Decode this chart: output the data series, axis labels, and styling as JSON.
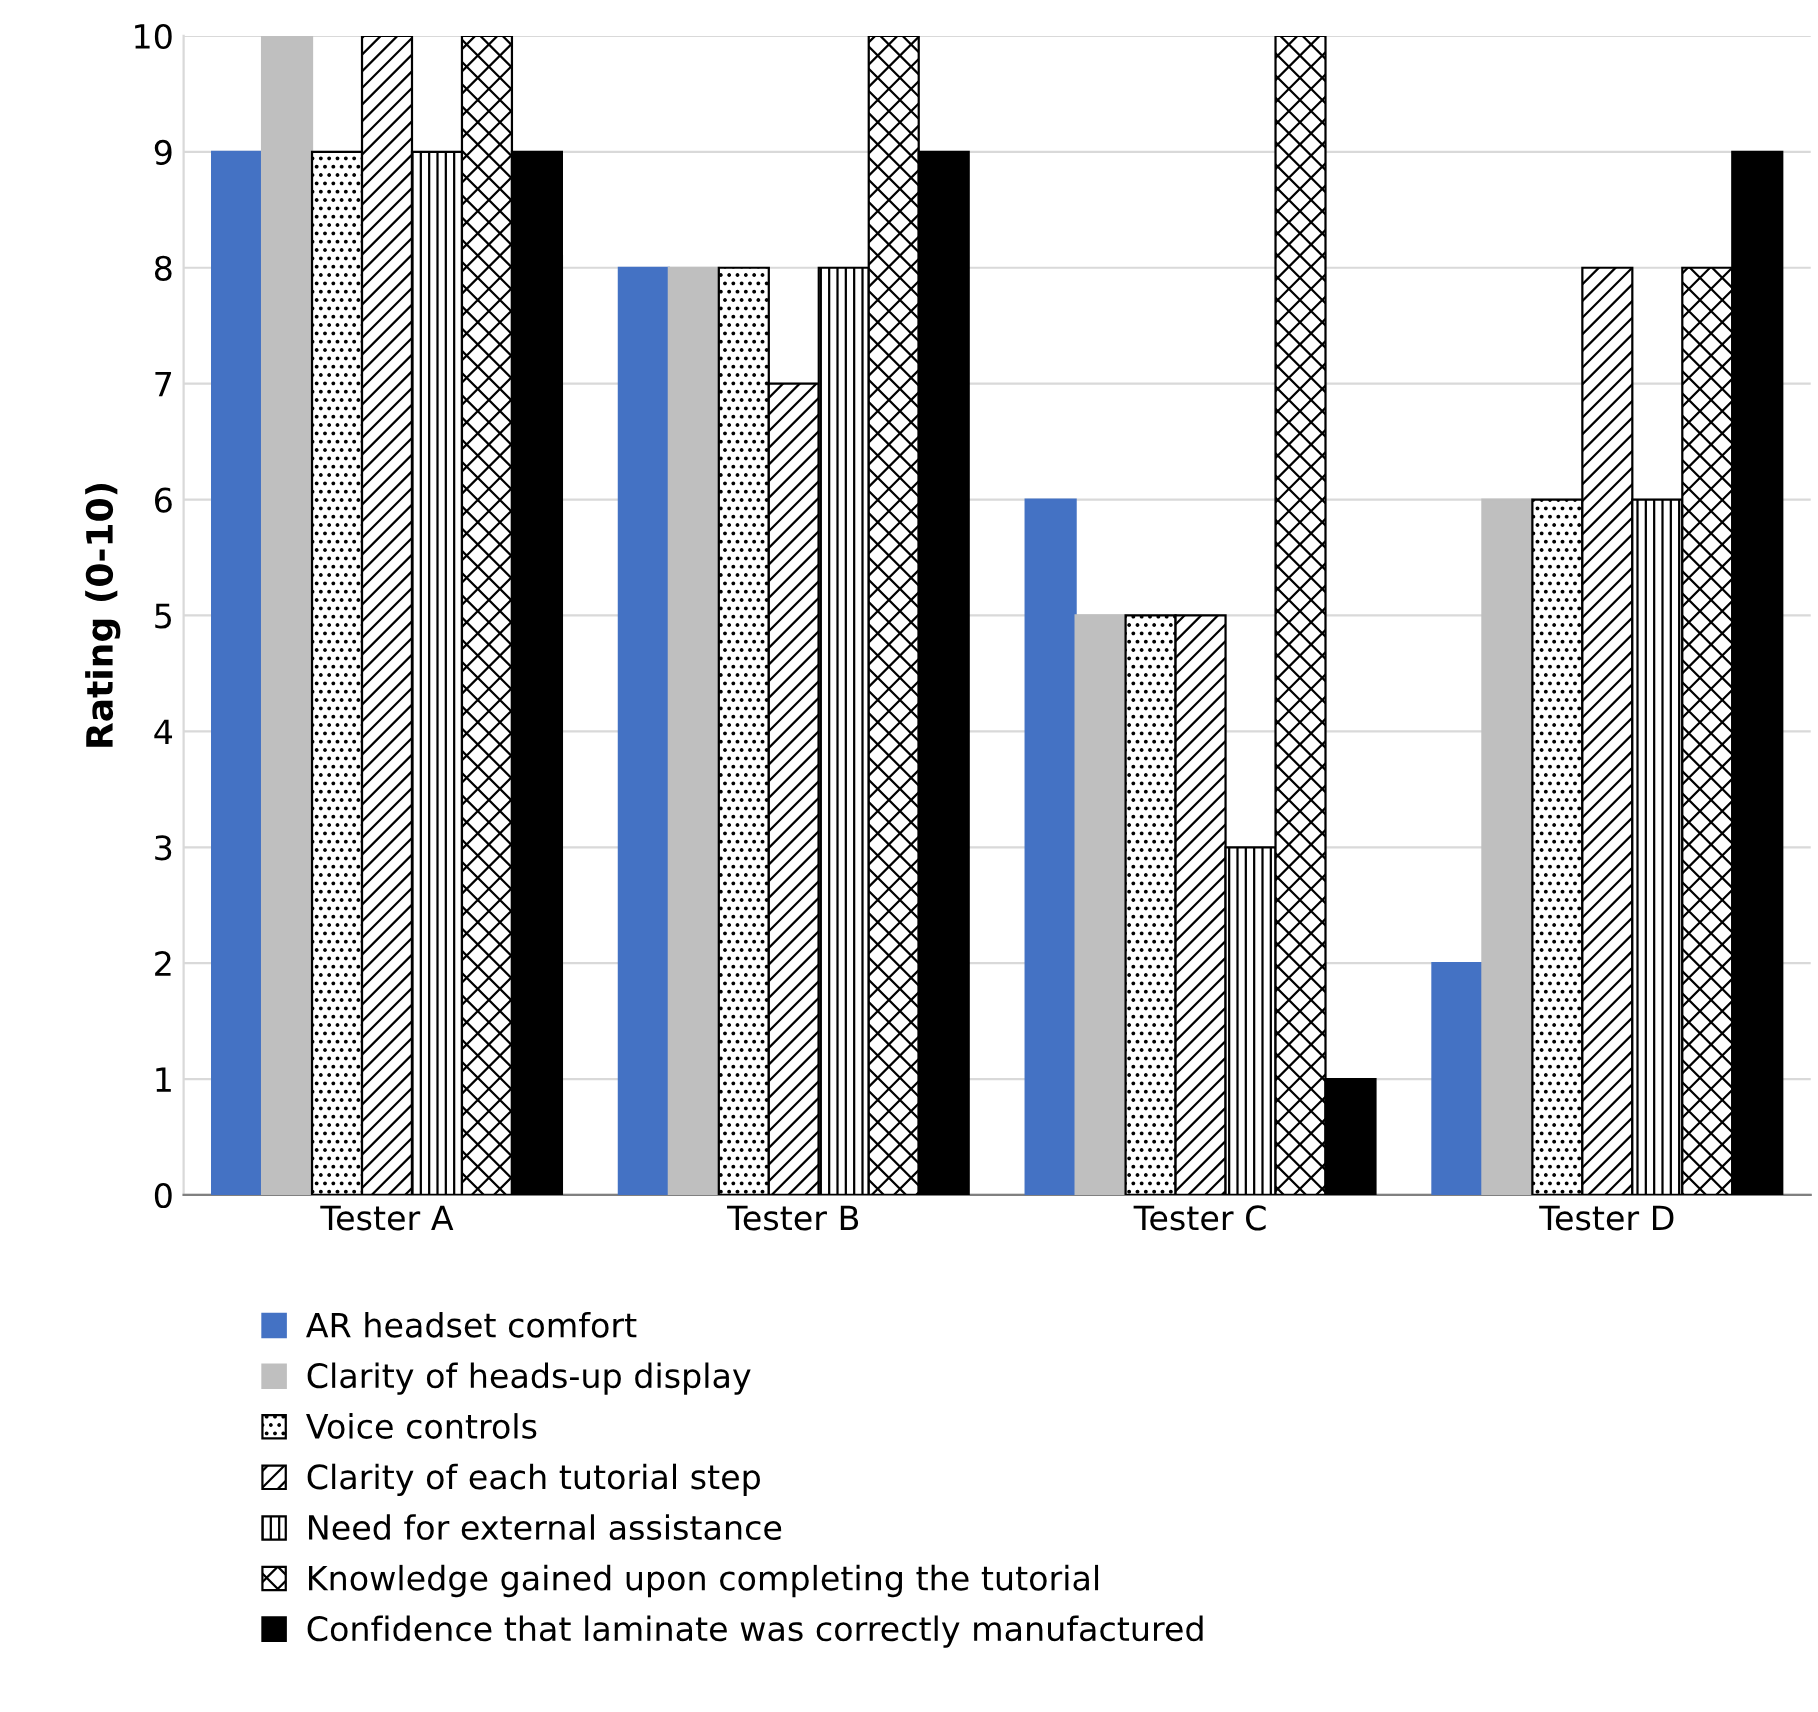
{
  "chart_data": {
    "type": "bar",
    "ylabel": "Rating (0-10)",
    "categories": [
      "Tester A",
      "Tester B",
      "Tester C",
      "Tester D"
    ],
    "series": [
      {
        "name": "AR headset comfort",
        "color": "#4472c4",
        "values": [
          9,
          8,
          6,
          2
        ]
      },
      {
        "name": "Clarity of heads-up display",
        "color": "#bfbfbf",
        "values": [
          10,
          8,
          5,
          6
        ]
      },
      {
        "name": "Voice controls",
        "color": "#000000",
        "values": [
          9,
          8,
          5,
          6
        ]
      },
      {
        "name": "Clarity of each tutorial step",
        "color": "#000000",
        "values": [
          10,
          7,
          5,
          8
        ]
      },
      {
        "name": "Need for external assistance",
        "color": "#000000",
        "values": [
          9,
          8,
          3,
          6
        ]
      },
      {
        "name": "Knowledge gained upon completing the tutorial",
        "color": "#000000",
        "values": [
          10,
          10,
          10,
          8
        ]
      },
      {
        "name": "Confidence that laminate was correctly manufactured",
        "color": "#000000",
        "values": [
          9,
          9,
          1,
          9
        ]
      }
    ],
    "ylim": [
      0,
      10
    ],
    "yticks": [
      0,
      1,
      2,
      3,
      4,
      5,
      6,
      7,
      8,
      9,
      10
    ],
    "grid": "y",
    "legend": "bottom"
  }
}
